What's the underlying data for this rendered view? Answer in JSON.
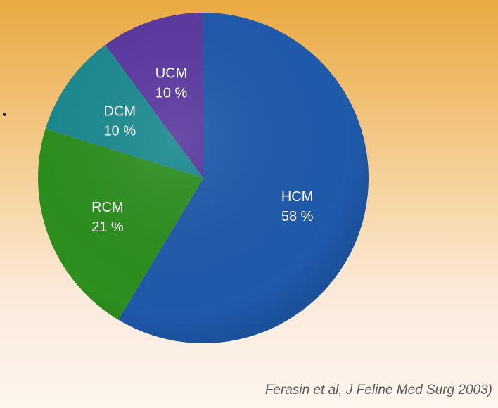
{
  "chart_data": {
    "type": "pie",
    "slices": [
      {
        "label": "HCM",
        "value_label": "58 %",
        "value": 58,
        "color": "#1f5aab"
      },
      {
        "label": "RCM",
        "value_label": "21 %",
        "value": 21,
        "color": "#2c8f1e"
      },
      {
        "label": "DCM",
        "value_label": "10 %",
        "value": 10,
        "color": "#1b8a90"
      },
      {
        "label": "UCM",
        "value_label": "10 %",
        "value": 10,
        "color": "#5b39a0"
      }
    ],
    "legend": "none"
  },
  "source_note": "Ferasin et al, J Feline Med Surg 2003)"
}
